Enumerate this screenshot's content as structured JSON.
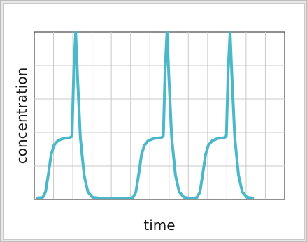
{
  "chart_data": {
    "type": "line",
    "title": "",
    "xlabel": "time",
    "ylabel": "concentration",
    "xlim": [
      0,
      26
    ],
    "ylim": [
      0,
      11
    ],
    "grid": true,
    "x_gridlines": 13,
    "y_gridlines": 5,
    "series": [
      {
        "color": "#4bb8c9",
        "points": [
          [
            0.0,
            0.0
          ],
          [
            0.6,
            0.05
          ],
          [
            0.9,
            0.4
          ],
          [
            1.2,
            1.6
          ],
          [
            1.5,
            2.9
          ],
          [
            1.8,
            3.5
          ],
          [
            2.2,
            3.8
          ],
          [
            2.8,
            3.95
          ],
          [
            3.5,
            4.0
          ],
          [
            3.7,
            4.1
          ],
          [
            3.72,
            4.3
          ],
          [
            3.9,
            8.5
          ],
          [
            4.1,
            11.0
          ],
          [
            4.3,
            8.0
          ],
          [
            4.6,
            4.0
          ],
          [
            5.0,
            1.5
          ],
          [
            5.4,
            0.4
          ],
          [
            5.9,
            0.05
          ],
          [
            6.5,
            0.0
          ],
          [
            9.9,
            0.0
          ],
          [
            10.2,
            0.05
          ],
          [
            10.5,
            0.4
          ],
          [
            10.8,
            1.6
          ],
          [
            11.1,
            2.9
          ],
          [
            11.4,
            3.5
          ],
          [
            11.8,
            3.8
          ],
          [
            12.4,
            3.95
          ],
          [
            13.2,
            4.0
          ],
          [
            13.4,
            4.1
          ],
          [
            13.42,
            4.3
          ],
          [
            13.6,
            8.5
          ],
          [
            13.8,
            11.0
          ],
          [
            14.0,
            8.0
          ],
          [
            14.3,
            4.0
          ],
          [
            14.7,
            1.5
          ],
          [
            15.1,
            0.4
          ],
          [
            15.6,
            0.05
          ],
          [
            16.2,
            0.0
          ],
          [
            16.7,
            0.0
          ],
          [
            17.0,
            0.05
          ],
          [
            17.3,
            0.4
          ],
          [
            17.6,
            1.6
          ],
          [
            17.9,
            2.9
          ],
          [
            18.2,
            3.5
          ],
          [
            18.6,
            3.8
          ],
          [
            19.2,
            3.95
          ],
          [
            19.9,
            4.0
          ],
          [
            20.1,
            4.1
          ],
          [
            20.12,
            4.3
          ],
          [
            20.3,
            8.5
          ],
          [
            20.5,
            11.0
          ],
          [
            20.7,
            8.0
          ],
          [
            21.0,
            4.0
          ],
          [
            21.4,
            1.5
          ],
          [
            21.8,
            0.4
          ],
          [
            22.3,
            0.05
          ],
          [
            22.9,
            0.0
          ]
        ]
      }
    ]
  }
}
